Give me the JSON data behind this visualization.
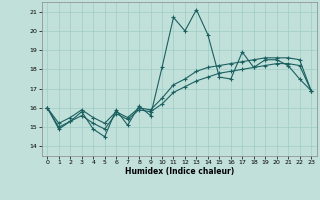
{
  "xlabel": "Humidex (Indice chaleur)",
  "xlim": [
    -0.5,
    23.5
  ],
  "ylim": [
    13.5,
    21.5
  ],
  "yticks": [
    14,
    15,
    16,
    17,
    18,
    19,
    20,
    21
  ],
  "xticks": [
    0,
    1,
    2,
    3,
    4,
    5,
    6,
    7,
    8,
    9,
    10,
    11,
    12,
    13,
    14,
    15,
    16,
    17,
    18,
    19,
    20,
    21,
    22,
    23
  ],
  "bg_color": "#c2e0da",
  "grid_color": "#9ecec7",
  "line_color": "#1a6060",
  "line1": [
    16.0,
    14.9,
    15.3,
    15.8,
    14.9,
    14.5,
    15.9,
    15.1,
    16.1,
    15.6,
    18.1,
    20.7,
    20.0,
    21.1,
    19.8,
    17.6,
    17.5,
    18.9,
    18.1,
    18.5,
    18.5,
    18.2,
    17.5,
    16.9
  ],
  "line2": [
    16.0,
    15.2,
    15.5,
    15.9,
    15.5,
    15.2,
    15.8,
    15.5,
    16.0,
    15.9,
    16.5,
    17.2,
    17.5,
    17.9,
    18.1,
    18.2,
    18.3,
    18.4,
    18.5,
    18.6,
    18.6,
    18.6,
    18.5,
    16.9
  ],
  "line3": [
    16.0,
    15.0,
    15.3,
    15.6,
    15.2,
    14.9,
    15.7,
    15.4,
    15.9,
    15.8,
    16.2,
    16.8,
    17.1,
    17.4,
    17.6,
    17.8,
    17.9,
    18.0,
    18.1,
    18.2,
    18.3,
    18.3,
    18.2,
    16.9
  ]
}
